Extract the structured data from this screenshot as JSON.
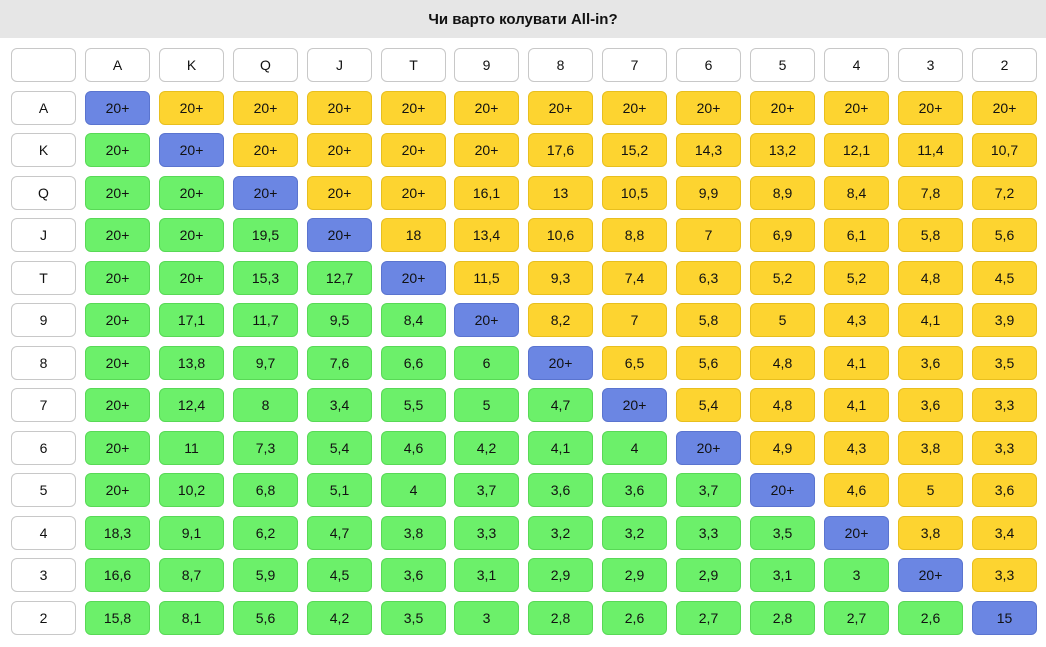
{
  "title": "Чи варто колувати All-in?",
  "colors": {
    "pair": "#6b86e3",
    "suited": "#fdd430",
    "offsuit": "#6cf06a",
    "header": "#ffffff",
    "title_bg": "#e6e6e6"
  },
  "chart_data": {
    "type": "heatmap",
    "title": "Чи варто колувати All-in?",
    "columns": [
      "A",
      "K",
      "Q",
      "J",
      "T",
      "9",
      "8",
      "7",
      "6",
      "5",
      "4",
      "3",
      "2"
    ],
    "rows": [
      "A",
      "K",
      "Q",
      "J",
      "T",
      "9",
      "8",
      "7",
      "6",
      "5",
      "4",
      "3",
      "2"
    ],
    "values": [
      [
        "20+",
        "20+",
        "20+",
        "20+",
        "20+",
        "20+",
        "20+",
        "20+",
        "20+",
        "20+",
        "20+",
        "20+",
        "20+"
      ],
      [
        "20+",
        "20+",
        "20+",
        "20+",
        "20+",
        "20+",
        "17,6",
        "15,2",
        "14,3",
        "13,2",
        "12,1",
        "11,4",
        "10,7"
      ],
      [
        "20+",
        "20+",
        "20+",
        "20+",
        "20+",
        "16,1",
        "13",
        "10,5",
        "9,9",
        "8,9",
        "8,4",
        "7,8",
        "7,2"
      ],
      [
        "20+",
        "20+",
        "19,5",
        "20+",
        "18",
        "13,4",
        "10,6",
        "8,8",
        "7",
        "6,9",
        "6,1",
        "5,8",
        "5,6"
      ],
      [
        "20+",
        "20+",
        "15,3",
        "12,7",
        "20+",
        "11,5",
        "9,3",
        "7,4",
        "6,3",
        "5,2",
        "5,2",
        "4,8",
        "4,5"
      ],
      [
        "20+",
        "17,1",
        "11,7",
        "9,5",
        "8,4",
        "20+",
        "8,2",
        "7",
        "5,8",
        "5",
        "4,3",
        "4,1",
        "3,9"
      ],
      [
        "20+",
        "13,8",
        "9,7",
        "7,6",
        "6,6",
        "6",
        "20+",
        "6,5",
        "5,6",
        "4,8",
        "4,1",
        "3,6",
        "3,5"
      ],
      [
        "20+",
        "12,4",
        "8",
        "3,4",
        "5,5",
        "5",
        "4,7",
        "20+",
        "5,4",
        "4,8",
        "4,1",
        "3,6",
        "3,3"
      ],
      [
        "20+",
        "11",
        "7,3",
        "5,4",
        "4,6",
        "4,2",
        "4,1",
        "4",
        "20+",
        "4,9",
        "4,3",
        "3,8",
        "3,3"
      ],
      [
        "20+",
        "10,2",
        "6,8",
        "5,1",
        "4",
        "3,7",
        "3,6",
        "3,6",
        "3,7",
        "20+",
        "4,6",
        "5",
        "3,6"
      ],
      [
        "18,3",
        "9,1",
        "6,2",
        "4,7",
        "3,8",
        "3,3",
        "3,2",
        "3,2",
        "3,3",
        "3,5",
        "20+",
        "3,8",
        "3,4"
      ],
      [
        "16,6",
        "8,7",
        "5,9",
        "4,5",
        "3,6",
        "3,1",
        "2,9",
        "2,9",
        "2,9",
        "3,1",
        "3",
        "20+",
        "3,3"
      ],
      [
        "15,8",
        "8,1",
        "5,6",
        "4,2",
        "3,5",
        "3",
        "2,8",
        "2,6",
        "2,7",
        "2,8",
        "2,7",
        "2,6",
        "15"
      ]
    ]
  }
}
